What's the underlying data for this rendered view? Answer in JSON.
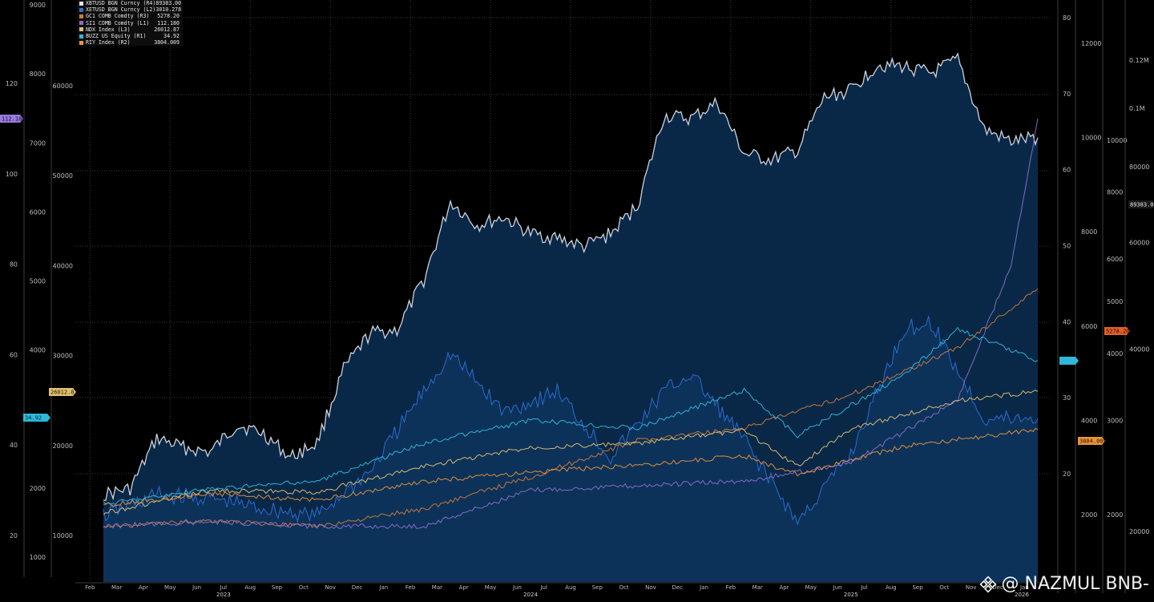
{
  "colors": {
    "background": "#000000",
    "area_fill": "#0a2a4c",
    "btc_line": "#d8dde8",
    "eth_line": "#2e6fd6",
    "gold_line": "#d07a3a",
    "silver_line": "#8a6fc8",
    "ndx_line": "#e0c070",
    "buzz_line": "#2fb8d8",
    "riy_line": "#e8943a"
  },
  "legend": {
    "items": [
      {
        "name": "XBTUSD BGN Curncy  (R4)",
        "value": "89383.00",
        "color": "#e6e6e6"
      },
      {
        "name": "XETUSD BGN Curncy  (L2)",
        "value": "3010.278",
        "color": "#2e6fd6"
      },
      {
        "name": "GC1 COMB Comdty  (R3)",
        "value": "5278.20",
        "color": "#d07a3a"
      },
      {
        "name": "SI1 COMB Comdty  (L1)",
        "value": "112.180",
        "color": "#8a6fc8"
      },
      {
        "name": "NDX Index  (L3)",
        "value": "26012.87",
        "color": "#e0c070"
      },
      {
        "name": "BUZZ US Equity  (R1)",
        "value": "34.92",
        "color": "#2fb8d8"
      },
      {
        "name": "RIY Index  (R2)",
        "value": "3804.009",
        "color": "#e8943a"
      }
    ]
  },
  "axes": {
    "l1_ticks": [
      "20",
      "40",
      "60",
      "80",
      "100",
      "120"
    ],
    "l2_ticks": [
      "1000",
      "2000",
      "3000",
      "4000",
      "5000",
      "6000",
      "7000",
      "8000",
      "9000"
    ],
    "l3_ticks": [
      "10000",
      "20000",
      "30000",
      "40000",
      "50000",
      "60000"
    ],
    "r1_ticks": [
      "20",
      "30",
      "40",
      "50",
      "60",
      "70",
      "80"
    ],
    "r2_ticks": [
      "2000",
      "4000",
      "6000",
      "8000",
      "10000",
      "12000"
    ],
    "r3_ticks": [
      "2000",
      "3000",
      "4000",
      "5000",
      "6000",
      "8000",
      "10000"
    ],
    "r4_ticks": [
      "20000",
      "40000",
      "60000",
      "80000",
      "0.1M",
      "0.12M"
    ],
    "months": [
      "Feb",
      "Mar",
      "Apr",
      "May",
      "Jun",
      "Jul",
      "Aug",
      "Sep",
      "Oct",
      "Nov",
      "Dec",
      "Jan",
      "Feb",
      "Mar",
      "Apr",
      "May",
      "Jun",
      "Jul",
      "Aug",
      "Sep",
      "Oct",
      "Nov",
      "Dec",
      "Jan",
      "Feb",
      "Mar",
      "Apr",
      "May",
      "Jun",
      "Jul",
      "Aug",
      "Sep",
      "Oct",
      "Nov",
      "Dec",
      "Jan"
    ],
    "years": [
      "2023",
      "2024",
      "2025",
      "2026"
    ]
  },
  "flags": {
    "silver": "112.180",
    "ndx": "26012.87",
    "buzz": "34.92",
    "riy": "3804.009",
    "gold": "5278.20",
    "btc": "89383.00",
    "eth": "3010.278"
  },
  "watermark": {
    "text": "@ NAZMUL BNB-",
    "icon": "binance-diamond-icon"
  },
  "chart_data": {
    "type": "area",
    "series": [
      {
        "name": "XBTUSD BGN Curncy (R4)",
        "axis": "R4",
        "x": [
          "2023-02",
          "2023-03",
          "2023-04",
          "2023-05",
          "2023-06",
          "2023-07",
          "2023-08",
          "2023-09",
          "2023-10",
          "2023-11",
          "2023-12",
          "2024-01",
          "2024-02",
          "2024-03",
          "2024-04",
          "2024-05",
          "2024-06",
          "2024-07",
          "2024-08",
          "2024-09",
          "2024-10",
          "2024-11",
          "2024-12",
          "2025-01",
          "2025-02",
          "2025-03",
          "2025-04",
          "2025-05",
          "2025-06",
          "2025-07",
          "2025-08",
          "2025-09",
          "2025-10",
          "2025-11",
          "2025-12",
          "2026-01"
        ],
        "values": [
          23000,
          23500,
          28500,
          27500,
          27000,
          30000,
          29000,
          26500,
          28000,
          37000,
          42500,
          43000,
          52000,
          70000,
          64000,
          66000,
          62000,
          61000,
          59000,
          62000,
          69000,
          97000,
          96000,
          102000,
          84000,
          82000,
          85000,
          104000,
          107000,
          118000,
          117000,
          114000,
          120000,
          92000,
          88000,
          89383
        ]
      },
      {
        "name": "XETUSD BGN Curncy (L2)",
        "axis": "L2",
        "x": [
          "2023-02",
          "2023-04",
          "2023-06",
          "2023-08",
          "2023-10",
          "2023-12",
          "2024-02",
          "2024-03",
          "2024-05",
          "2024-07",
          "2024-09",
          "2024-11",
          "2024-12",
          "2025-02",
          "2025-04",
          "2025-06",
          "2025-08",
          "2025-09",
          "2025-11",
          "2026-01"
        ],
        "values": [
          1600,
          1900,
          1850,
          1700,
          1600,
          2250,
          3400,
          3950,
          3100,
          3400,
          2450,
          3400,
          3650,
          2700,
          1500,
          2500,
          4300,
          4400,
          3000,
          3010
        ]
      },
      {
        "name": "GC1 COMB Comdty (R3)",
        "axis": "R3",
        "x": [
          "2023-02",
          "2023-06",
          "2023-10",
          "2024-02",
          "2024-06",
          "2024-10",
          "2025-02",
          "2025-06",
          "2025-10",
          "2026-01"
        ],
        "values": [
          1900,
          1950,
          1900,
          2050,
          2350,
          2750,
          2900,
          3350,
          4100,
          5278
        ]
      },
      {
        "name": "SI1 COMB Comdty (L1)",
        "axis": "L1",
        "x": [
          "2023-02",
          "2023-06",
          "2023-10",
          "2024-02",
          "2024-06",
          "2024-10",
          "2025-02",
          "2025-06",
          "2025-10",
          "2025-12",
          "2026-01"
        ],
        "values": [
          22,
          23,
          22,
          22,
          30,
          31,
          32,
          36,
          50,
          80,
          112.18
        ]
      },
      {
        "name": "NDX Index (L3)",
        "axis": "L3",
        "x": [
          "2023-02",
          "2023-06",
          "2023-10",
          "2024-02",
          "2024-06",
          "2024-10",
          "2025-02",
          "2025-04",
          "2025-06",
          "2025-10",
          "2026-01"
        ],
        "values": [
          12500,
          15000,
          14800,
          17700,
          19800,
          20200,
          21700,
          17700,
          21900,
          25000,
          26012.87
        ]
      },
      {
        "name": "BUZZ US Equity (R1)",
        "axis": "R1",
        "x": [
          "2023-02",
          "2023-06",
          "2023-10",
          "2024-02",
          "2024-06",
          "2024-10",
          "2025-02",
          "2025-04",
          "2025-08",
          "2025-10",
          "2026-01"
        ],
        "values": [
          16,
          18,
          19,
          24,
          27,
          26,
          31,
          25,
          33,
          39,
          34.92
        ]
      },
      {
        "name": "RIY Index (R2)",
        "axis": "R2",
        "x": [
          "2023-02",
          "2023-06",
          "2023-10",
          "2024-02",
          "2024-06",
          "2024-10",
          "2025-02",
          "2025-04",
          "2025-08",
          "2026-01"
        ],
        "values": [
          2200,
          2450,
          2300,
          2700,
          2900,
          3050,
          3250,
          2850,
          3450,
          3804.009
        ]
      }
    ],
    "title": "",
    "xlabel": "",
    "ylabel": "",
    "grid": true,
    "legend": "top-left"
  }
}
